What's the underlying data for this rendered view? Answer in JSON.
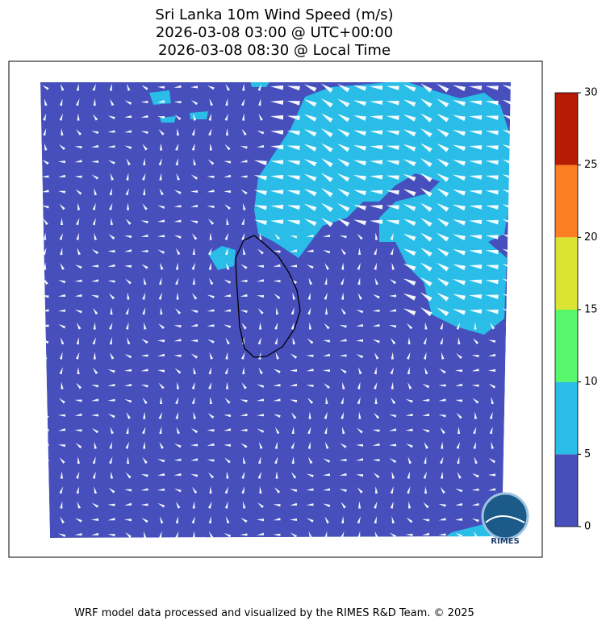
{
  "header": {
    "title": [
      "Sri Lanka 10m Wind Speed (m/s)",
      "2026-03-08 03:00 @ UTC+00:00",
      "2026-03-08 08:30 @ Local Time"
    ]
  },
  "colorbar": {
    "ticks": [
      0,
      5,
      10,
      15,
      20,
      25,
      30
    ],
    "colors": [
      "#464fbb",
      "#29bde8",
      "#57f76b",
      "#d9e331",
      "#fd7f23",
      "#b61c03"
    ]
  },
  "logo": {
    "label": "RIMES"
  },
  "footer": {
    "text": "WRF model data processed and visualized by the RIMES R&D Team. © 2025"
  }
}
